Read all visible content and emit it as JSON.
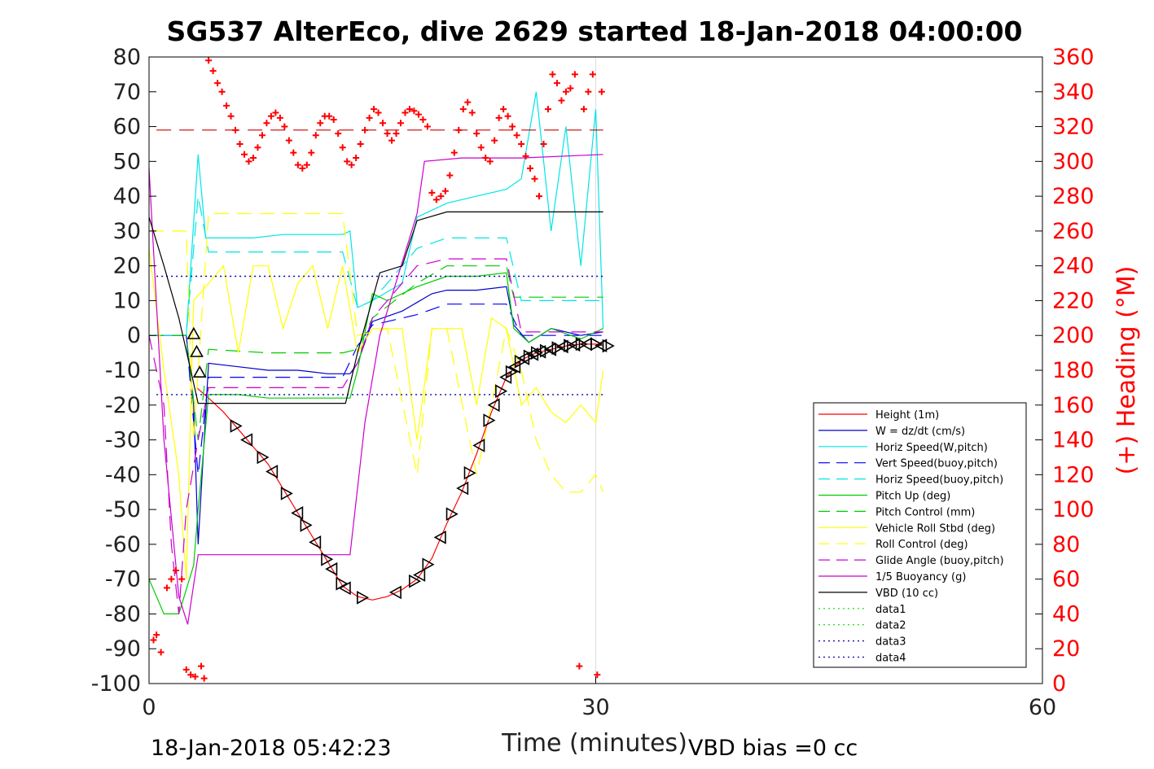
{
  "title": "SG537 AlterEco, dive 2629 started 18-Jan-2018 04:00:00",
  "footer": {
    "timestamp": "18-Jan-2018 05:42:23",
    "vbd_bias": "VBD bias =0 cc"
  },
  "chart_data": {
    "type": "line",
    "xlabel": "Time (minutes)",
    "ylabel_right": "(+) Heading (°M)",
    "xlim": [
      0,
      60
    ],
    "ylim": [
      -100,
      80
    ],
    "ylim_right": [
      0,
      360
    ],
    "xticks": [
      0,
      30,
      60
    ],
    "yticks": [
      80,
      70,
      60,
      50,
      40,
      30,
      20,
      10,
      0,
      -10,
      -20,
      -30,
      -40,
      -50,
      -60,
      -70,
      -80,
      -90,
      -100
    ],
    "yticks_right": [
      360,
      340,
      320,
      300,
      280,
      260,
      240,
      220,
      200,
      180,
      160,
      140,
      120,
      100,
      80,
      60,
      40,
      20,
      0
    ],
    "legend_placement": "lower-right",
    "colors": {
      "heading": "#ff0000",
      "right_axis": "#ff0000"
    },
    "series": [
      {
        "name": "Height (1m)",
        "color": "#ff0000",
        "style": "solid",
        "x": [
          3.2,
          4,
          5,
          6,
          7,
          8,
          9,
          10,
          11,
          12,
          13,
          14,
          15,
          16,
          17,
          18,
          19,
          20,
          21,
          22,
          23,
          24,
          25,
          26,
          27,
          28,
          29,
          30,
          30.5
        ],
        "y": [
          -15,
          -18,
          -22,
          -27,
          -32,
          -37,
          -44,
          -51,
          -58,
          -65,
          -72,
          -75,
          -76,
          -75,
          -73,
          -70,
          -64,
          -54,
          -45,
          -34,
          -22,
          -12,
          -7,
          -5,
          -4,
          -3,
          -2.5,
          -2.5,
          -3
        ]
      },
      {
        "name": "W = dz/dt (cm/s)",
        "color": "#0000cc",
        "style": "solid",
        "x": [
          0,
          2.5,
          3,
          3.3,
          4,
          6,
          8,
          10,
          12,
          13.5,
          14,
          15,
          17,
          19,
          20,
          22,
          24,
          24.5,
          25.5,
          27,
          29,
          30.5
        ],
        "y": [
          0,
          0,
          -20,
          -60,
          -8,
          -9,
          -10,
          -10,
          -11,
          -11,
          -8,
          4,
          7,
          12,
          13,
          13,
          14,
          3,
          -2,
          2,
          0,
          1
        ]
      },
      {
        "name": "Horiz Speed(W,pitch)",
        "color": "#00e5e5",
        "style": "solid",
        "x": [
          0,
          2.5,
          3.3,
          3.8,
          5,
          7,
          9,
          11,
          13,
          13.5,
          14,
          15,
          17,
          18,
          20,
          22,
          24,
          25,
          26,
          27,
          28,
          29,
          30,
          30.5
        ],
        "y": [
          0,
          0,
          52,
          28,
          28,
          28,
          29,
          29,
          29,
          30,
          8,
          10,
          15,
          34,
          38,
          40,
          42,
          45,
          70,
          30,
          60,
          20,
          65,
          2
        ]
      },
      {
        "name": "Vert Speed(buoy,pitch)",
        "color": "#0000ff",
        "style": "dashed",
        "x": [
          0,
          2.5,
          3.3,
          4,
          8,
          13,
          14,
          15,
          18,
          20,
          24,
          25,
          30.5
        ],
        "y": [
          0,
          0,
          -40,
          -12,
          -12,
          -12,
          -3,
          3,
          6,
          9,
          9,
          0,
          0
        ]
      },
      {
        "name": "Horiz Speed(buoy,pitch)",
        "color": "#00e5e5",
        "style": "dashed",
        "x": [
          0,
          2.5,
          3.3,
          4,
          8,
          13,
          14,
          15,
          18,
          20,
          24,
          25,
          30.5
        ],
        "y": [
          0,
          0,
          40,
          24,
          24,
          24,
          8,
          10,
          25,
          28,
          28,
          10,
          10
        ]
      },
      {
        "name": "Pitch Up (deg)",
        "color": "#00cc00",
        "style": "solid",
        "x": [
          0,
          1,
          2,
          3,
          3.3,
          4,
          6,
          8,
          10,
          12,
          13.5,
          14,
          15,
          16,
          18,
          20,
          22,
          24,
          24.5,
          25.5,
          27,
          29,
          30.5
        ],
        "y": [
          -70,
          -80,
          -80,
          -66,
          -50,
          -17,
          -17,
          -18,
          -18,
          -18,
          -18,
          -10,
          12,
          10,
          14,
          17,
          17,
          18,
          2,
          -2,
          2,
          -1,
          2
        ]
      },
      {
        "name": "Pitch Control (mm)",
        "color": "#00cc00",
        "style": "dashed",
        "x": [
          0,
          2.5,
          3.3,
          4,
          8,
          13,
          14,
          15,
          18,
          20,
          24,
          24.5,
          30.5
        ],
        "y": [
          0,
          0,
          -30,
          -4,
          -5,
          -5,
          -4,
          5,
          15,
          20,
          20,
          11,
          11
        ]
      },
      {
        "name": "Vehicle Roll Stbd (deg)",
        "color": "#ffff00",
        "style": "solid",
        "x": [
          0,
          1,
          2,
          2.5,
          3,
          4,
          5,
          6,
          7,
          8,
          9,
          10,
          11,
          12,
          13,
          14,
          15,
          16,
          17,
          18,
          19,
          20,
          21,
          22,
          23,
          24,
          25,
          26,
          27,
          28,
          29,
          30,
          30.5
        ],
        "y": [
          25,
          -10,
          -40,
          -70,
          10,
          15,
          20,
          -5,
          20,
          20,
          2,
          15,
          20,
          2,
          20,
          -5,
          2,
          2,
          2,
          -30,
          2,
          2,
          2,
          -20,
          5,
          2,
          -20,
          -15,
          -22,
          -25,
          -20,
          -25,
          -10
        ]
      },
      {
        "name": "Roll Control (deg)",
        "color": "#ffff00",
        "style": "dashed",
        "x": [
          0,
          2.5,
          3,
          4,
          6,
          8,
          10,
          12,
          13,
          14,
          16,
          18,
          19,
          20,
          22,
          23,
          24,
          25,
          26,
          27,
          28,
          29,
          30,
          30.5
        ],
        "y": [
          30,
          30,
          -30,
          35,
          35,
          35,
          35,
          35,
          35,
          0,
          2,
          -40,
          2,
          2,
          -40,
          -20,
          2,
          -10,
          -30,
          -40,
          -45,
          -45,
          -40,
          -45
        ]
      },
      {
        "name": "Glide Angle (buoy,pitch)",
        "color": "#cc00cc",
        "style": "dashed",
        "x": [
          0,
          1,
          1.5,
          2,
          2.5,
          3.3,
          4,
          8,
          13,
          14,
          15,
          18,
          20,
          24,
          25,
          30.5
        ],
        "y": [
          0,
          -20,
          -60,
          -80,
          -50,
          -30,
          -15,
          -15,
          -15,
          -8,
          5,
          20,
          22,
          22,
          1,
          1
        ]
      },
      {
        "name": "1/5 Buoyancy (g)",
        "color": "#cc00cc",
        "style": "solid",
        "x": [
          0,
          1,
          2,
          2.6,
          3.3,
          8,
          13,
          13.5,
          14.5,
          15.5,
          18,
          18.5,
          21,
          25,
          30.5
        ],
        "y": [
          48,
          -30,
          -75,
          -83,
          -63,
          -63,
          -63,
          -63,
          -25,
          0,
          35,
          50,
          51,
          51,
          52
        ]
      },
      {
        "name": "VBD (10 cc)",
        "color": "#000000",
        "style": "solid",
        "x": [
          0,
          1,
          2,
          2.8,
          3.3,
          8,
          13.2,
          14,
          15.5,
          17,
          18,
          20,
          25,
          30.5
        ],
        "y": [
          34,
          20,
          5,
          -10,
          -19.5,
          -19.5,
          -19.5,
          -5,
          18,
          20,
          33,
          35.5,
          35.5,
          35.5
        ]
      },
      {
        "name": "data1",
        "color": "#00e000",
        "style": "dotted",
        "x": [],
        "y": []
      },
      {
        "name": "data2",
        "color": "#00e000",
        "style": "dotted",
        "x": [],
        "y": []
      },
      {
        "name": "data3",
        "color": "#0000aa",
        "style": "dotted",
        "x": [
          0.5,
          30.5
        ],
        "y": [
          17,
          17
        ]
      },
      {
        "name": "data4",
        "color": "#0000aa",
        "style": "dotted",
        "x": [
          0.5,
          30.5
        ],
        "y": [
          -17,
          -17
        ]
      }
    ],
    "heading_target_deg": 318,
    "heading_points": {
      "x": [
        0.3,
        0.5,
        0.8,
        1.2,
        1.5,
        1.8,
        2.2,
        2.5,
        2.8,
        3.1,
        3.5,
        3.7,
        4,
        4.3,
        4.6,
        4.9,
        5.2,
        5.5,
        5.8,
        6.1,
        6.4,
        6.7,
        7,
        7.3,
        7.6,
        7.9,
        8.2,
        8.5,
        8.8,
        9.1,
        9.4,
        9.7,
        10,
        10.3,
        10.6,
        10.9,
        11.2,
        11.5,
        11.8,
        12.1,
        12.4,
        12.7,
        13,
        13.3,
        13.6,
        13.9,
        14.2,
        14.5,
        14.8,
        15.1,
        15.4,
        15.7,
        16,
        16.3,
        16.6,
        16.9,
        17.2,
        17.5,
        17.8,
        18.1,
        18.4,
        18.7,
        19,
        19.3,
        19.6,
        19.9,
        20.2,
        20.5,
        20.8,
        21.1,
        21.4,
        21.7,
        22,
        22.3,
        22.6,
        22.9,
        23.2,
        23.5,
        23.8,
        24.1,
        24.4,
        24.7,
        25,
        25.3,
        25.6,
        25.9,
        26.2,
        26.5,
        26.8,
        27.1,
        27.4,
        27.7,
        28,
        28.3,
        28.6,
        28.9,
        29.2,
        29.5,
        29.8,
        30.1,
        30.4
      ],
      "y": [
        25,
        28,
        18,
        55,
        60,
        65,
        60,
        8,
        5,
        4,
        10,
        3,
        358,
        352,
        345,
        340,
        332,
        326,
        318,
        310,
        304,
        300,
        302,
        308,
        315,
        322,
        326,
        328,
        325,
        320,
        312,
        305,
        298,
        296,
        298,
        305,
        315,
        322,
        326,
        326,
        324,
        316,
        308,
        300,
        298,
        302,
        310,
        318,
        325,
        330,
        328,
        322,
        316,
        312,
        316,
        322,
        328,
        330,
        329,
        327,
        324,
        320,
        282,
        278,
        280,
        283,
        292,
        305,
        318,
        330,
        334,
        328,
        316,
        308,
        302,
        300,
        312,
        325,
        330,
        326,
        320,
        315,
        310,
        303,
        296,
        290,
        280,
        310,
        330,
        350,
        345,
        335,
        340,
        342,
        350,
        10,
        330,
        340,
        350,
        5,
        340
      ]
    },
    "triangle_markers_x": [
      3,
      3.2,
      3.4,
      5.8,
      6.6,
      7.6,
      8.3,
      9.2,
      10,
      10.5,
      11.2,
      11.9,
      12.3,
      12.9,
      13.2,
      14.3,
      16.6,
      17.8,
      18.2,
      18.7,
      19.6,
      20.3,
      21.1,
      21.5,
      22.2,
      22.8,
      23.2,
      23.6,
      24,
      24.3,
      24.6,
      24.9,
      25.2,
      25.5,
      25.8,
      26,
      26.3,
      26.6,
      27,
      27.4,
      27.8,
      28.2,
      28.6,
      29,
      29.4,
      30,
      30.4,
      30.8
    ]
  },
  "legend": [
    "Height (1m)",
    "W = dz/dt (cm/s)",
    "Horiz Speed(W,pitch)",
    "Vert Speed(buoy,pitch)",
    "Horiz Speed(buoy,pitch)",
    "Pitch Up (deg)",
    "Pitch Control (mm)",
    "Vehicle Roll Stbd (deg)",
    "Roll Control (deg)",
    "Glide Angle (buoy,pitch)",
    "1/5 Buoyancy (g)",
    "VBD (10 cc)",
    "data1",
    "data2",
    "data3",
    "data4"
  ]
}
